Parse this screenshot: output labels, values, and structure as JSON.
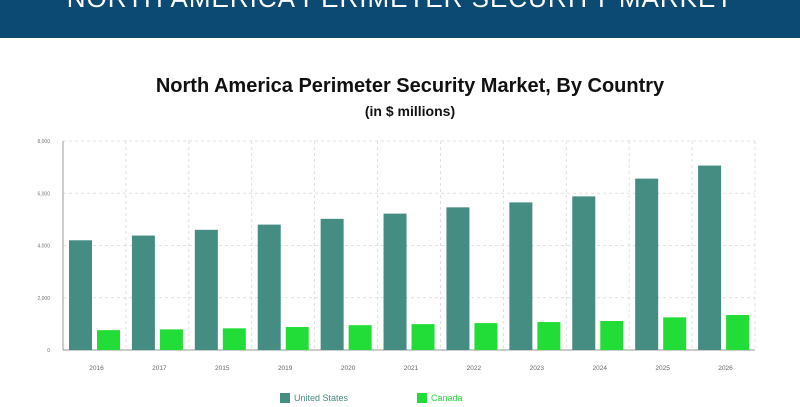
{
  "banner": {
    "text": "NORTH AMERICA PERIMETER SECURITY MARKET"
  },
  "chart_data": {
    "type": "bar",
    "title": "North America Perimeter Security Market, By Country",
    "subtitle": "(in $ millions)",
    "categories": [
      "2016",
      "2017",
      "2015",
      "2019",
      "2020",
      "2021",
      "2022",
      "2023",
      "2024",
      "2025",
      "2026"
    ],
    "series": [
      {
        "name": "United States",
        "color": "#458c82",
        "values": [
          4200,
          4380,
          4600,
          4800,
          5020,
          5220,
          5460,
          5650,
          5880,
          6560,
          7060
        ]
      },
      {
        "name": "Canada",
        "color": "#22dd38",
        "values": [
          760,
          790,
          830,
          880,
          950,
          990,
          1030,
          1070,
          1110,
          1250,
          1340
        ]
      }
    ],
    "y_ticks": [
      "0",
      "2,000",
      "4,000",
      "6,000",
      "8,000"
    ],
    "ylim": [
      0,
      8000
    ],
    "grid": true,
    "legend_position": "bottom"
  }
}
